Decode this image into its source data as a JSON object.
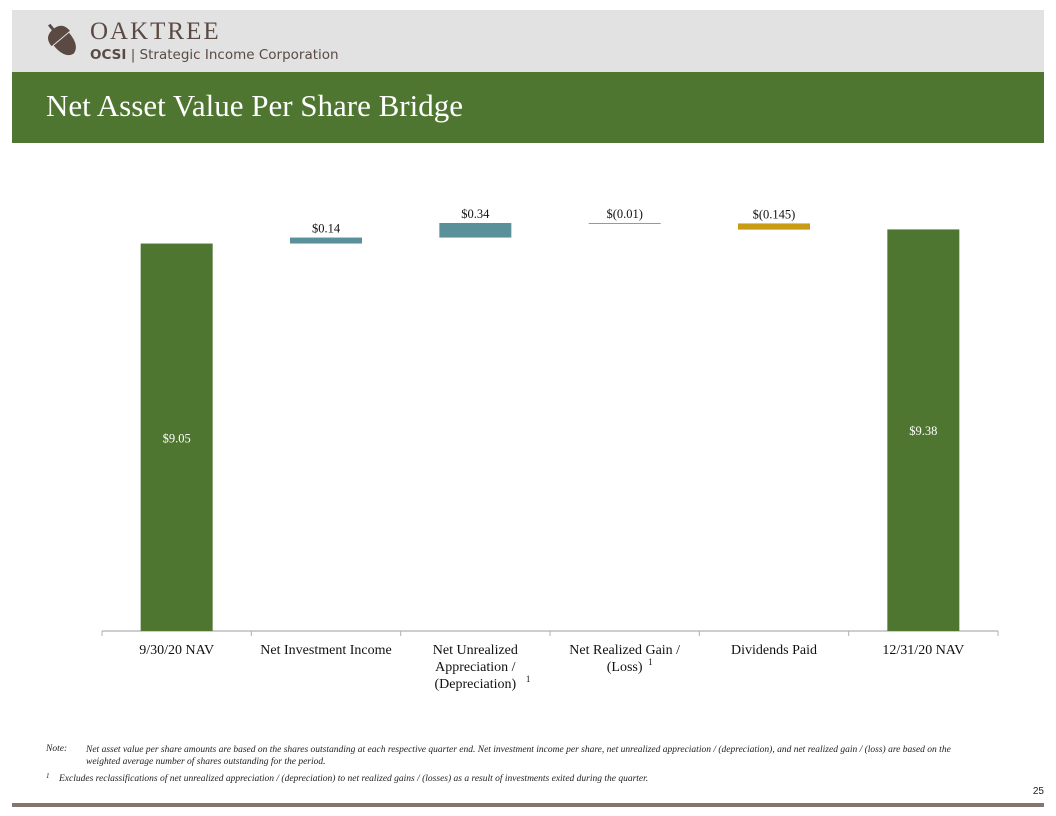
{
  "header": {
    "brand": "OAKTREE",
    "ticker": "OCSI",
    "separator": "|",
    "company": "Strategic Income Corporation"
  },
  "title": "Net Asset Value Per Share Bridge",
  "colors": {
    "header_bg": "#e2e2e2",
    "title_band": "#4f7630",
    "nav_bar": "#4f7630",
    "positive_bar": "#5a9099",
    "negative_bar": "#c79c14",
    "brand_text": "#5b4a44",
    "footer_rule": "#857570"
  },
  "chart_data": {
    "type": "bar",
    "subtype": "waterfall",
    "categories": [
      "9/30/20 NAV",
      "Net Investment Income",
      "Net Unrealized Appreciation / (Depreciation)",
      "Net Realized Gain / (Loss)",
      "Dividends Paid",
      "12/31/20 NAV"
    ],
    "category_lines": [
      [
        "9/30/20 NAV"
      ],
      [
        "Net Investment Income"
      ],
      [
        "Net Unrealized",
        "Appreciation /",
        "(Depreciation)"
      ],
      [
        "Net Realized Gain /",
        "(Loss)"
      ],
      [
        "Dividends Paid"
      ],
      [
        "12/31/20 NAV"
      ]
    ],
    "category_footnote": [
      "",
      "",
      "1",
      "1",
      "",
      ""
    ],
    "values": [
      9.05,
      0.14,
      0.34,
      -0.01,
      -0.145,
      9.38
    ],
    "kinds": [
      "total",
      "delta",
      "delta",
      "delta",
      "delta",
      "total"
    ],
    "labels": [
      "$9.05",
      "$0.14",
      "$0.34",
      "$(0.01)",
      "$(0.145)",
      "$9.38"
    ],
    "ylim": [
      0,
      9.6
    ],
    "grid": false,
    "legend": "none",
    "xlabel": "",
    "ylabel": ""
  },
  "notes": {
    "note_label": "Note:",
    "note_text": "Net asset value per share amounts are based on the shares outstanding at each respective quarter end. Net investment income per share, net unrealized appreciation / (depreciation), and net realized gain / (loss) are based on the weighted average number of shares outstanding for the period.",
    "footnote_mark": "1",
    "footnote_text": "Excludes reclassifications of net unrealized appreciation / (depreciation) to net realized gains / (losses) as a result of investments exited during the quarter."
  },
  "page_number": "25"
}
